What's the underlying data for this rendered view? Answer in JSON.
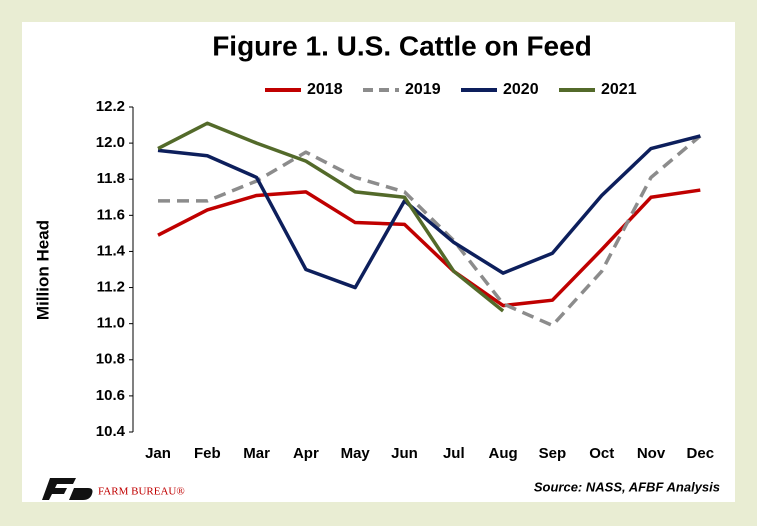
{
  "chart_data": {
    "type": "line",
    "title": "Figure 1. U.S. Cattle on Feed",
    "y_label": "Million Head",
    "source": "Source: NASS, AFBF Analysis",
    "logo_text": "FARM BUREAU®",
    "categories": [
      "Jan",
      "Feb",
      "Mar",
      "Apr",
      "May",
      "Jun",
      "Jul",
      "Aug",
      "Sep",
      "Oct",
      "Nov",
      "Dec"
    ],
    "series": [
      {
        "name": "2018",
        "color": "#c00000",
        "dash": false,
        "values": [
          11.49,
          11.63,
          11.71,
          11.73,
          11.56,
          11.55,
          11.29,
          11.1,
          11.13,
          11.41,
          11.7,
          11.74
        ]
      },
      {
        "name": "2019",
        "color": "#8c8c8c",
        "dash": true,
        "values": [
          11.68,
          11.68,
          11.79,
          11.95,
          11.81,
          11.73,
          11.46,
          11.11,
          10.99,
          11.29,
          11.81,
          12.04
        ]
      },
      {
        "name": "2020",
        "color": "#0d1f5c",
        "dash": false,
        "values": [
          11.96,
          11.93,
          11.81,
          11.3,
          11.2,
          11.68,
          11.45,
          11.28,
          11.39,
          11.71,
          11.97,
          12.04
        ]
      },
      {
        "name": "2021",
        "color": "#536a2a",
        "dash": false,
        "values": [
          11.97,
          12.11,
          12.0,
          11.9,
          11.73,
          11.7,
          11.29,
          11.07,
          null,
          null,
          null,
          null
        ]
      }
    ],
    "ylim": [
      10.4,
      12.2
    ],
    "yticks": [
      10.4,
      10.6,
      10.8,
      {
        "value": 11,
        "label": "11.0"
      },
      11.2,
      11.4,
      11.6,
      11.8,
      {
        "value": 12,
        "label": "12.0"
      },
      12.2
    ],
    "legend": "top"
  }
}
